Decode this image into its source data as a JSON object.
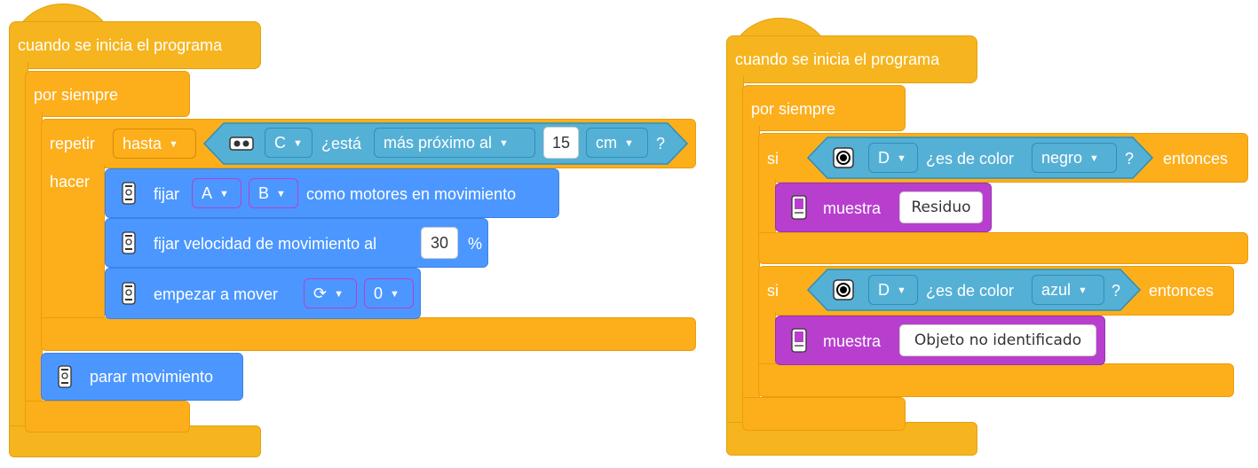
{
  "left_script": {
    "hat_label": "cuando se inicia el programa",
    "forever_label": "por siempre",
    "repeat": {
      "label": "repetir",
      "mode": "hasta",
      "do_label": "hacer",
      "condition": {
        "port": "C",
        "label": "¿está",
        "comparison": "más próximo al",
        "value": "15",
        "unit": "cm",
        "question": "?"
      }
    },
    "move_set_motors": {
      "label_pre": "fijar",
      "port_a": "A",
      "port_b": "B",
      "label_post": "como motores en movimiento"
    },
    "move_set_speed": {
      "label": "fijar velocidad de movimiento al",
      "value": "30",
      "unit": "%"
    },
    "move_start": {
      "label": "empezar a mover",
      "direction_icon": "⟳",
      "value": "0"
    },
    "stop": {
      "label": "parar movimiento"
    }
  },
  "right_script": {
    "hat_label": "cuando se inicia el programa",
    "forever_label": "por siempre",
    "if1": {
      "if_label": "si",
      "port": "D",
      "label": "¿es de color",
      "color": "negro",
      "question": "?",
      "then_label": "entonces",
      "display_label": "muestra",
      "display_text": "Residuo"
    },
    "if2": {
      "if_label": "si",
      "port": "D",
      "label": "¿es de color",
      "color": "azul",
      "question": "?",
      "then_label": "entonces",
      "display_label": "muestra",
      "display_text": "Objeto no identificado"
    }
  },
  "colors": {
    "events": "#f6b51e",
    "control": "#fdae1b",
    "movement": "#4c97ff",
    "sensors": "#55b0d6",
    "display": "#b83fce"
  }
}
